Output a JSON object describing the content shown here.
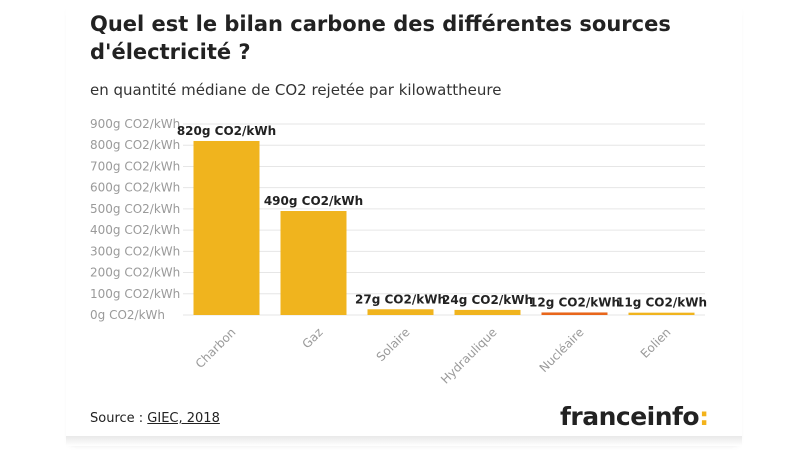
{
  "title": "Quel est le bilan carbone des différentes sources d'électricité ?",
  "subtitle": "en quantité médiane de CO2 rejetée par kilowattheure",
  "source": {
    "prefix": "Source : ",
    "link": "GIEC, 2018"
  },
  "logo": {
    "text": "franceinfo",
    "mark": ":"
  },
  "colors": {
    "bar": "#f0b41e",
    "bar_highlight": "#e8661b",
    "grid": "#e6e6e6",
    "tick": "#9a9a9a",
    "logo_accent": "#f3b31b"
  },
  "chart_data": {
    "type": "bar",
    "categories": [
      "Charbon",
      "Gaz",
      "Solaire",
      "Hydraulique",
      "Nucléaire",
      "Eolien"
    ],
    "values": [
      820,
      490,
      27,
      24,
      12,
      11
    ],
    "data_labels": [
      "820g CO2/kWh",
      "490g CO2/kWh",
      "27g CO2/kWh",
      "24g CO2/kWh",
      "12g CO2/kWh",
      "11g CO2/kWh"
    ],
    "highlight_index": 4,
    "y_ticks": [
      {
        "value": 0,
        "label": "0g CO2/kWh"
      },
      {
        "value": 100,
        "label": "100g CO2/kWh"
      },
      {
        "value": 200,
        "label": "200g CO2/kWh"
      },
      {
        "value": 300,
        "label": "300g CO2/kWh"
      },
      {
        "value": 400,
        "label": "400g CO2/kWh"
      },
      {
        "value": 500,
        "label": "500g CO2/kWh"
      },
      {
        "value": 600,
        "label": "600g CO2/kWh"
      },
      {
        "value": 700,
        "label": "700g CO2/kWh"
      },
      {
        "value": 800,
        "label": "800g CO2/kWh"
      },
      {
        "value": 900,
        "label": "900g CO2/kWh"
      }
    ],
    "ylim": [
      0,
      900
    ],
    "grid": true,
    "xlabel": "",
    "ylabel": ""
  }
}
